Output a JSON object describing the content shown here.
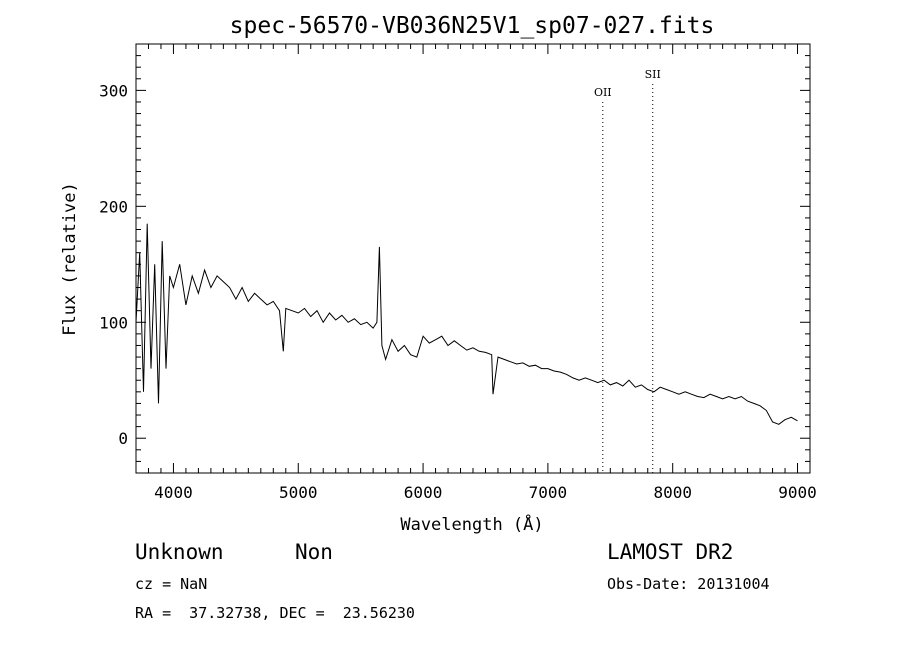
{
  "chart_data": {
    "type": "line",
    "title": "spec-56570-VB036N25V1_sp07-027.fits",
    "xlabel": "Wavelength (Å)",
    "ylabel": "Flux (relative)",
    "xlim": [
      3700,
      9100
    ],
    "ylim": [
      -30,
      340
    ],
    "xticks": [
      4000,
      5000,
      6000,
      7000,
      8000,
      9000
    ],
    "yticks": [
      0,
      100,
      200,
      300
    ],
    "grid": false,
    "series": [
      {
        "values_note": "",
        "x": [
          3700,
          3730,
          3760,
          3790,
          3820,
          3850,
          3880,
          3910,
          3940,
          3970,
          4000,
          4050,
          4100,
          4150,
          4200,
          4250,
          4300,
          4350,
          4400,
          4450,
          4500,
          4550,
          4600,
          4650,
          4700,
          4750,
          4800,
          4850,
          4880,
          4900,
          4950,
          5000,
          5050,
          5100,
          5150,
          5200,
          5250,
          5300,
          5350,
          5400,
          5450,
          5500,
          5550,
          5600,
          5630,
          5650,
          5670,
          5700,
          5750,
          5800,
          5850,
          5900,
          5950,
          6000,
          6050,
          6100,
          6150,
          6200,
          6250,
          6300,
          6350,
          6400,
          6450,
          6500,
          6550,
          6560,
          6600,
          6650,
          6700,
          6750,
          6800,
          6850,
          6900,
          6950,
          7000,
          7050,
          7100,
          7150,
          7200,
          7250,
          7300,
          7350,
          7400,
          7450,
          7500,
          7550,
          7600,
          7650,
          7700,
          7750,
          7800,
          7850,
          7900,
          7950,
          8000,
          8050,
          8100,
          8150,
          8200,
          8250,
          8300,
          8350,
          8400,
          8450,
          8500,
          8550,
          8600,
          8650,
          8700,
          8750,
          8800,
          8850,
          8900,
          8950,
          9000
        ],
        "values": [
          100,
          160,
          40,
          185,
          60,
          150,
          30,
          170,
          60,
          140,
          130,
          150,
          115,
          140,
          125,
          145,
          130,
          140,
          135,
          130,
          120,
          130,
          118,
          125,
          120,
          115,
          118,
          110,
          75,
          112,
          110,
          108,
          112,
          105,
          110,
          100,
          108,
          102,
          106,
          100,
          103,
          98,
          100,
          95,
          100,
          165,
          80,
          68,
          85,
          75,
          80,
          72,
          70,
          88,
          82,
          85,
          88,
          80,
          84,
          80,
          76,
          78,
          75,
          74,
          72,
          38,
          70,
          68,
          66,
          64,
          65,
          62,
          63,
          60,
          60,
          58,
          57,
          55,
          52,
          50,
          52,
          50,
          48,
          50,
          46,
          48,
          45,
          50,
          44,
          46,
          42,
          40,
          44,
          42,
          40,
          38,
          40,
          38,
          36,
          35,
          38,
          36,
          34,
          36,
          34,
          36,
          32,
          30,
          28,
          24,
          14,
          12,
          16,
          18,
          15
        ]
      }
    ],
    "annotations": [
      {
        "label": "OII",
        "x": 7440
      },
      {
        "label": "SII",
        "x": 7840
      }
    ]
  },
  "footer": {
    "class_label": "Unknown",
    "subclass_label": "Non",
    "survey_label": "LAMOST DR2",
    "cz_text": "cz = NaN",
    "obs_date_text": "Obs-Date: 20131004",
    "coords_text": "RA =  37.32738, DEC =  23.56230"
  }
}
